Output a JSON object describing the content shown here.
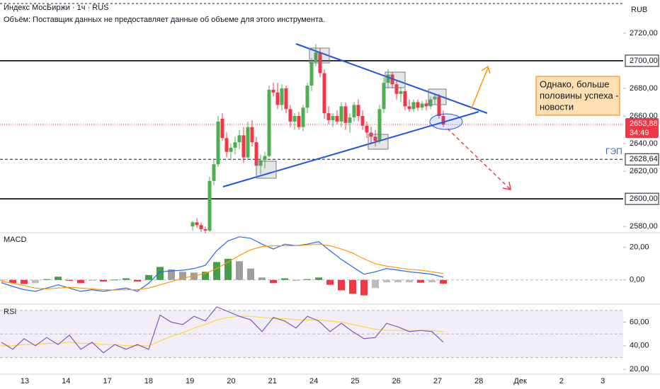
{
  "header": {
    "title": "Индекс МосБиржи · 1ч · RUS",
    "volume_note": "Объём: Поставщик данных не предоставляет данные об объеме для этого инструмента.",
    "currency": "RUB"
  },
  "annotation": {
    "lines": [
      "Однако, больше",
      "половины успеха -",
      "новости"
    ],
    "gap_label": "ГЭП"
  },
  "x_axis": {
    "labels": [
      "13",
      "14",
      "17",
      "18",
      "19",
      "20",
      "21",
      "24",
      "25",
      "26",
      "27",
      "28",
      "Дек",
      "2",
      "3"
    ]
  },
  "chart_data": [
    {
      "type": "candlestick",
      "open": [
        2580,
        2583,
        2581,
        2578,
        2577,
        2613,
        2625,
        2658,
        2644,
        2634,
        2637,
        2641,
        2646,
        2630,
        2652,
        2641,
        2624,
        2628,
        2631,
        2679,
        2677,
        2668,
        2680,
        2665,
        2656,
        2660,
        2652,
        2666,
        2682,
        2699,
        2706,
        2691,
        2662,
        2657,
        2660,
        2656,
        2667,
        2655,
        2659,
        2668,
        2660,
        2653,
        2648,
        2645,
        2642,
        2665,
        2684,
        2690,
        2683,
        2676,
        2678,
        2667,
        2665,
        2670,
        2666,
        2669,
        2667,
        2672,
        2674,
        2660
      ],
      "high": [
        2584,
        2586,
        2583,
        2580,
        2616,
        2628,
        2660,
        2662,
        2648,
        2640,
        2645,
        2650,
        2652,
        2656,
        2657,
        2645,
        2632,
        2634,
        2682,
        2684,
        2684,
        2683,
        2682,
        2668,
        2662,
        2663,
        2668,
        2684,
        2702,
        2712,
        2709,
        2694,
        2667,
        2662,
        2664,
        2670,
        2670,
        2662,
        2670,
        2672,
        2664,
        2656,
        2652,
        2650,
        2668,
        2688,
        2694,
        2692,
        2686,
        2681,
        2680,
        2672,
        2672,
        2672,
        2671,
        2672,
        2674,
        2676,
        2676,
        2664
      ],
      "low": [
        2577,
        2579,
        2576,
        2575,
        2576,
        2610,
        2623,
        2642,
        2630,
        2628,
        2632,
        2636,
        2626,
        2628,
        2638,
        2620,
        2618,
        2622,
        2630,
        2674,
        2665,
        2664,
        2662,
        2652,
        2650,
        2650,
        2649,
        2662,
        2678,
        2696,
        2688,
        2658,
        2654,
        2652,
        2654,
        2652,
        2650,
        2648,
        2656,
        2656,
        2650,
        2644,
        2640,
        2638,
        2640,
        2662,
        2680,
        2680,
        2672,
        2670,
        2664,
        2663,
        2663,
        2664,
        2664,
        2664,
        2665,
        2668,
        2658,
        2652
      ],
      "close": [
        2583,
        2581,
        2578,
        2577,
        2613,
        2625,
        2656,
        2644,
        2634,
        2637,
        2641,
        2646,
        2630,
        2652,
        2641,
        2624,
        2628,
        2631,
        2679,
        2677,
        2668,
        2680,
        2665,
        2656,
        2660,
        2652,
        2666,
        2682,
        2699,
        2706,
        2691,
        2662,
        2657,
        2660,
        2656,
        2667,
        2655,
        2659,
        2668,
        2660,
        2653,
        2648,
        2645,
        2642,
        2665,
        2684,
        2690,
        2683,
        2676,
        2678,
        2667,
        2665,
        2670,
        2666,
        2669,
        2667,
        2672,
        2674,
        2660,
        2653.88
      ],
      "up_color": "#4caf50",
      "down_color": "#f23645",
      "ylim": [
        2576,
        2744
      ],
      "yticks": [
        {
          "value": 2720,
          "label": "2720,00"
        },
        {
          "value": 2680,
          "label": "2680,00"
        },
        {
          "value": 2660,
          "label": "2660,00"
        },
        {
          "value": 2640,
          "label": "2640,00"
        },
        {
          "value": 2620,
          "label": "2620,00"
        },
        {
          "value": 2580,
          "label": "2580,00"
        }
      ],
      "levels": [
        {
          "value": 2700,
          "label": "2700,00",
          "style": "solid"
        },
        {
          "value": 2628.64,
          "label": "2628,64",
          "style": "dashed"
        },
        {
          "value": 2600,
          "label": "2600,00",
          "style": "solid"
        }
      ],
      "last_price": {
        "value": 2653.88,
        "label": "2653,88"
      },
      "timer": "34:49"
    },
    {
      "type": "macd",
      "title": "MACD",
      "series": [
        {
          "color": "#2962ff",
          "values": [
            -1.7,
            -4,
            -6,
            -7,
            -5,
            -3,
            -5,
            -7,
            -6,
            -7,
            -6,
            -5,
            -7,
            -2,
            5,
            5.5,
            6,
            7,
            9,
            18,
            24,
            26.5,
            25.6,
            22,
            19,
            22,
            21,
            22,
            23.5,
            18,
            12.6,
            8,
            3.5,
            5,
            7,
            6,
            5,
            4.3,
            3.5,
            1.7
          ]
        },
        {
          "color": "#ff9800",
          "values": [
            -1,
            -2,
            -3.5,
            -5,
            -5.5,
            -5,
            -4.5,
            -5,
            -5.5,
            -6,
            -6.2,
            -6,
            -6,
            -5,
            -3,
            -1,
            1,
            2.5,
            4,
            7,
            11,
            15,
            18.5,
            20.5,
            21,
            21,
            21,
            21.5,
            22,
            21,
            19,
            16.5,
            13,
            10,
            8.5,
            7.5,
            6.5,
            6,
            5,
            4
          ]
        }
      ],
      "histogram": {
        "values": [
          -0.7,
          -2,
          -2.5,
          -2,
          0.5,
          2,
          -0.5,
          -2,
          -0.5,
          -1,
          0.2,
          1,
          -1,
          3,
          8,
          6.5,
          5,
          4.5,
          5,
          11,
          13,
          11.5,
          7,
          1.5,
          -2,
          1,
          0,
          0.5,
          1.5,
          -3,
          -6.4,
          -8.5,
          -9.5,
          -5,
          -1.5,
          -1.5,
          -1.5,
          -1.7,
          -1.5,
          -2.3
        ],
        "colors": {
          "pos_up": "#43a047",
          "pos_down": "#9e9e9e",
          "neg_down": "#f23645",
          "neg_up": "#bdbdbd"
        }
      },
      "ylim": [
        -14,
        28.6
      ],
      "yticks": [
        {
          "value": 20,
          "label": "20,00"
        },
        {
          "value": 0,
          "label": "0,00"
        }
      ]
    },
    {
      "type": "rsi",
      "title": "RSI",
      "series": [
        {
          "color": "#7e57c2",
          "values": [
            43,
            37,
            46,
            40,
            47,
            41,
            49,
            37,
            43,
            34,
            41,
            37,
            41,
            37,
            66,
            60,
            58,
            65,
            61,
            73,
            69,
            65,
            62,
            52,
            64,
            61,
            55,
            65,
            61,
            52,
            59,
            52,
            46,
            47,
            59,
            56,
            52,
            53,
            52,
            43
          ]
        },
        {
          "color": "#fdd835",
          "values": [
            40,
            40,
            41,
            41,
            42,
            42,
            43,
            42,
            42,
            41,
            41,
            40,
            40,
            40,
            44,
            48,
            51,
            55,
            58,
            62,
            64,
            65,
            65,
            64,
            63,
            63,
            62,
            62,
            62,
            61,
            60,
            58,
            56,
            54,
            53,
            53,
            53,
            53,
            53,
            52
          ]
        }
      ],
      "band": [
        30,
        70
      ],
      "band_color": "#7e57c2",
      "ylim": [
        16.5,
        74.1
      ],
      "yticks": [
        {
          "value": 60,
          "label": "60,00"
        },
        {
          "value": 40,
          "label": "40,00"
        },
        {
          "value": 20,
          "label": "20,00"
        }
      ]
    }
  ]
}
